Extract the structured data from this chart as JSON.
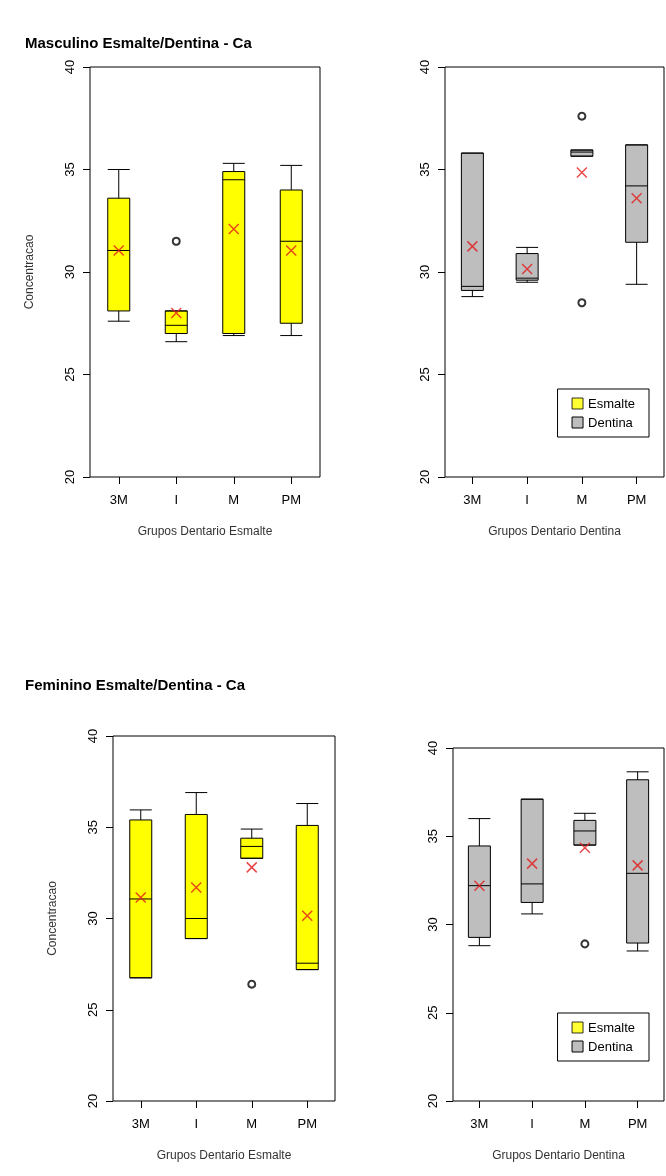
{
  "chart_data": [
    {
      "type": "box",
      "title": "Masculino Esmalte/Dentina - Ca",
      "xlabel": "Grupos Dentario Esmalte",
      "ylabel": "Concentracao",
      "categories": [
        "3M",
        "I",
        "M",
        "PM"
      ],
      "ylim": [
        20,
        40
      ],
      "yticks": [
        20,
        25,
        30,
        35,
        40
      ],
      "legend": false,
      "series": [
        {
          "color": "#ffff00",
          "boxes": [
            {
              "low": 27.6,
              "q1": 28.1,
              "median": 31.05,
              "q3": 33.6,
              "high": 35.0,
              "mean": 31.05
            },
            {
              "low": 26.6,
              "q1": 27.0,
              "median": 27.4,
              "q3": 28.1,
              "high": 28.1,
              "mean": 28.0,
              "outliers": [
                31.5
              ]
            },
            {
              "low": 26.9,
              "q1": 27.0,
              "median": 34.5,
              "q3": 34.9,
              "high": 35.3,
              "mean": 32.1
            },
            {
              "low": 26.9,
              "q1": 27.5,
              "median": 31.5,
              "q3": 34.0,
              "high": 35.2,
              "mean": 31.05
            }
          ]
        }
      ]
    },
    {
      "type": "box",
      "xlabel": "Grupos Dentario Dentina",
      "categories": [
        "3M",
        "I",
        "M",
        "PM"
      ],
      "ylim": [
        20,
        40
      ],
      "yticks": [
        20,
        25,
        30,
        35,
        40
      ],
      "legend": "bottom right",
      "series": [
        {
          "name": "Esmalte",
          "color": "#ffff00",
          "boxes": [
            null,
            null,
            null,
            null
          ]
        },
        {
          "name": "Dentina",
          "color": "#bebebe",
          "boxes": [
            {
              "low": 28.8,
              "q1": 29.1,
              "median": 29.3,
              "q3": 35.8,
              "high": 35.8,
              "mean": 31.25
            },
            {
              "low": 29.5,
              "q1": 29.6,
              "median": 29.7,
              "q3": 30.9,
              "high": 31.2,
              "mean": 30.15
            },
            {
              "low": 35.65,
              "q1": 35.65,
              "median": 35.85,
              "q3": 35.95,
              "high": 35.95,
              "mean": 34.85,
              "outliers": [
                37.6,
                28.5
              ]
            },
            {
              "low": 29.4,
              "q1": 31.45,
              "median": 34.2,
              "q3": 36.2,
              "high": 36.2,
              "mean": 33.6
            }
          ]
        }
      ]
    },
    {
      "type": "box",
      "title": "Feminino Esmalte/Dentina - Ca",
      "xlabel": "Grupos Dentario Esmalte",
      "ylabel": "Concentracao",
      "categories": [
        "3M",
        "I",
        "M",
        "PM"
      ],
      "ylim": [
        20,
        40
      ],
      "yticks": [
        20,
        25,
        30,
        35,
        40
      ],
      "legend": false,
      "series": [
        {
          "color": "#ffff00",
          "boxes": [
            {
              "low": 26.75,
              "q1": 26.75,
              "median": 31.07,
              "q3": 35.4,
              "high": 35.95,
              "mean": 31.15
            },
            {
              "low": 28.9,
              "q1": 28.9,
              "median": 30.0,
              "q3": 35.7,
              "high": 36.9,
              "mean": 31.7
            },
            {
              "low": 33.3,
              "q1": 33.3,
              "median": 33.95,
              "q3": 34.4,
              "high": 34.9,
              "mean": 32.8,
              "outliers": [
                26.4
              ]
            },
            {
              "low": 27.2,
              "q1": 27.2,
              "median": 27.55,
              "q3": 35.1,
              "high": 36.3,
              "mean": 30.15
            }
          ]
        }
      ]
    },
    {
      "type": "box",
      "xlabel": "Grupos Dentario Dentina",
      "categories": [
        "3M",
        "I",
        "M",
        "PM"
      ],
      "ylim": [
        20,
        40
      ],
      "yticks": [
        20,
        25,
        30,
        35,
        40
      ],
      "legend": "bottom right",
      "series": [
        {
          "name": "Esmalte",
          "color": "#ffff00",
          "boxes": [
            null,
            null,
            null,
            null
          ]
        },
        {
          "name": "Dentina",
          "color": "#bebebe",
          "boxes": [
            {
              "low": 28.8,
              "q1": 29.27,
              "median": 32.2,
              "q3": 34.45,
              "high": 36.0,
              "mean": 32.2
            },
            {
              "low": 30.6,
              "q1": 31.25,
              "median": 32.3,
              "q3": 37.1,
              "high": 37.1,
              "mean": 33.45
            },
            {
              "low": 34.5,
              "q1": 34.5,
              "median": 35.3,
              "q3": 35.9,
              "high": 36.3,
              "mean": 34.35,
              "outliers": [
                28.9
              ]
            },
            {
              "low": 28.5,
              "q1": 28.95,
              "median": 32.9,
              "q3": 38.2,
              "high": 38.65,
              "mean": 33.35
            }
          ]
        }
      ]
    }
  ]
}
